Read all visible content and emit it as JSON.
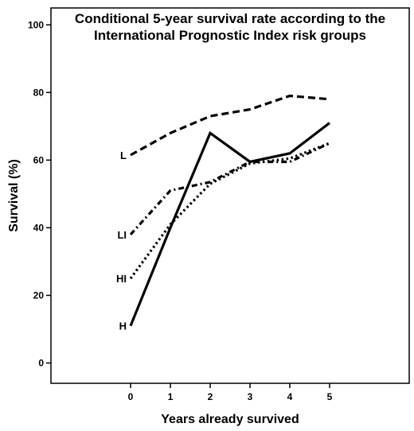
{
  "chart_data": {
    "type": "line",
    "title_line1": "Conditional 5-year survival rate according to the",
    "title_line2": "International Prognostic Index risk groups",
    "xlabel": "Years already survived",
    "ylabel": "Survival (%)",
    "x": [
      0,
      1,
      2,
      3,
      4,
      5
    ],
    "x_tick_labels": [
      "0",
      "1",
      "2",
      "3",
      "4",
      "5"
    ],
    "xlim": [
      -2,
      7
    ],
    "ylim": [
      -6,
      105
    ],
    "y_ticks": [
      0,
      20,
      40,
      60,
      80,
      100
    ],
    "y_tick_labels": [
      "0",
      "20",
      "40",
      "60",
      "80",
      "100"
    ],
    "grid": false,
    "legend": "none",
    "series": [
      {
        "name": "L",
        "line_style": "dashed",
        "values": [
          61.5,
          68,
          73,
          75,
          79,
          78
        ]
      },
      {
        "name": "LI",
        "line_style": "dash-dot",
        "values": [
          38,
          51,
          53.5,
          59.5,
          59.5,
          65
        ]
      },
      {
        "name": "HI",
        "line_style": "dotted",
        "values": [
          25,
          41,
          53,
          59,
          60.5,
          65
        ]
      },
      {
        "name": "H",
        "line_style": "solid",
        "values": [
          11,
          40,
          68,
          59.5,
          62,
          71
        ]
      }
    ],
    "colors": {
      "line": "#000000",
      "axis": "#000000",
      "background": "#ffffff"
    }
  }
}
